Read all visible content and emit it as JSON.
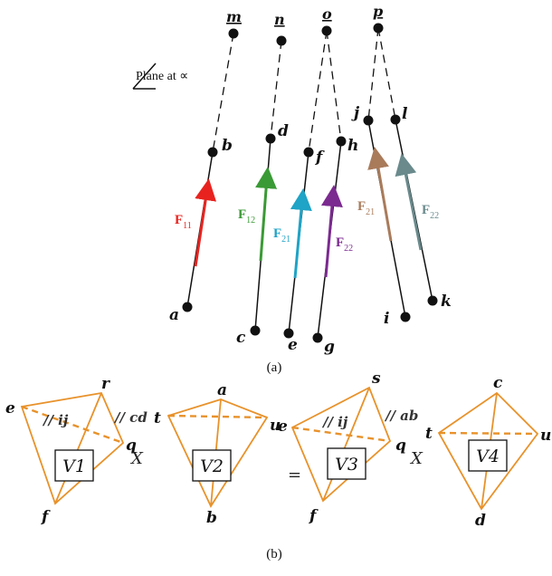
{
  "part_a": {
    "caption": "(a)",
    "plane_label": "Plane at ∝",
    "top_points": [
      "m",
      "n",
      "o",
      "p"
    ],
    "points": [
      "a",
      "b",
      "c",
      "d",
      "e",
      "f",
      "g",
      "h",
      "i",
      "j",
      "k",
      "l"
    ],
    "forces": [
      {
        "main": "F",
        "sub": "11",
        "color": "#e8231f"
      },
      {
        "main": "F",
        "sub": "12",
        "color": "#3a9a35"
      },
      {
        "main": "F",
        "sub": "21",
        "color": "#1fa3c6"
      },
      {
        "main": "F",
        "sub": "22",
        "color": "#7b2a90"
      },
      {
        "main": "F",
        "sub": "21",
        "color": "#a97b5b"
      },
      {
        "main": "F",
        "sub": "22",
        "color": "#6a8a8c"
      }
    ]
  },
  "part_b": {
    "caption": "(b)",
    "edge_color": "#e8922b",
    "operators": {
      "times1": "X",
      "equals": "=",
      "times2": "X"
    },
    "t1": {
      "box": "V1",
      "points": [
        "r",
        "e",
        "q",
        "f"
      ],
      "parallel_1": "// ij",
      "parallel_2": "// cd"
    },
    "t2": {
      "box": "V2",
      "points": [
        "a",
        "t",
        "u",
        "b"
      ]
    },
    "t3": {
      "box": "V3",
      "points": [
        "s",
        "e",
        "q",
        "f"
      ],
      "parallel_1": "// ij",
      "parallel_2": "// ab"
    },
    "t4": {
      "box": "V4",
      "points": [
        "c",
        "t",
        "u",
        "d"
      ]
    }
  }
}
